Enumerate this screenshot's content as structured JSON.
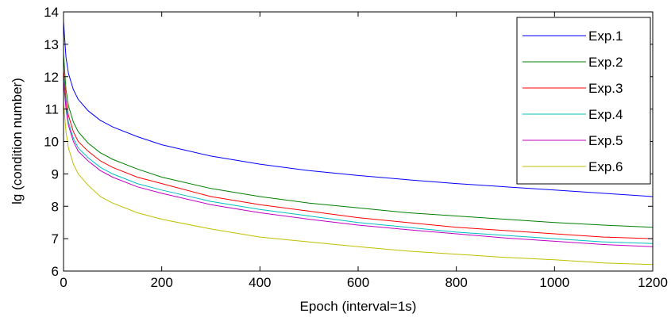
{
  "chart_data": {
    "type": "line",
    "xlabel": "Epoch (interval=1s)",
    "ylabel": "lg (condition number)",
    "xlim": [
      0,
      1200
    ],
    "ylim": [
      6,
      14
    ],
    "x_ticks": [
      "0",
      "200",
      "400",
      "600",
      "800",
      "1000",
      "1200"
    ],
    "y_ticks": [
      "6",
      "7",
      "8",
      "9",
      "10",
      "11",
      "12",
      "13",
      "14"
    ],
    "grid": false,
    "legend_position": "top-right",
    "series": [
      {
        "name": "Exp.1",
        "color": "#0000ff",
        "x": [
          0,
          5,
          10,
          20,
          30,
          50,
          75,
          100,
          150,
          200,
          300,
          400,
          500,
          600,
          700,
          800,
          900,
          1000,
          1100,
          1200
        ],
        "y": [
          13.7,
          12.6,
          12.1,
          11.6,
          11.3,
          10.95,
          10.65,
          10.45,
          10.15,
          9.9,
          9.55,
          9.3,
          9.1,
          8.95,
          8.82,
          8.7,
          8.6,
          8.5,
          8.4,
          8.3
        ]
      },
      {
        "name": "Exp.2",
        "color": "#008000",
        "x": [
          0,
          5,
          10,
          20,
          30,
          50,
          75,
          100,
          150,
          200,
          300,
          400,
          500,
          600,
          700,
          800,
          900,
          1000,
          1100,
          1200
        ],
        "y": [
          12.7,
          11.6,
          11.1,
          10.6,
          10.3,
          9.95,
          9.65,
          9.45,
          9.15,
          8.9,
          8.55,
          8.3,
          8.1,
          7.95,
          7.8,
          7.7,
          7.6,
          7.5,
          7.42,
          7.35
        ]
      },
      {
        "name": "Exp.3",
        "color": "#ff0000",
        "x": [
          0,
          5,
          10,
          20,
          30,
          50,
          75,
          100,
          150,
          200,
          300,
          400,
          500,
          600,
          700,
          800,
          900,
          1000,
          1100,
          1200
        ],
        "y": [
          12.2,
          11.3,
          10.8,
          10.3,
          10.0,
          9.7,
          9.4,
          9.2,
          8.9,
          8.7,
          8.3,
          8.05,
          7.85,
          7.65,
          7.5,
          7.35,
          7.25,
          7.15,
          7.05,
          7.0
        ]
      },
      {
        "name": "Exp.4",
        "color": "#00bfbf",
        "x": [
          0,
          5,
          10,
          20,
          30,
          50,
          75,
          100,
          150,
          200,
          300,
          400,
          500,
          600,
          700,
          800,
          900,
          1000,
          1100,
          1200
        ],
        "y": [
          12.0,
          11.1,
          10.6,
          10.1,
          9.8,
          9.5,
          9.2,
          9.0,
          8.7,
          8.5,
          8.15,
          7.9,
          7.7,
          7.5,
          7.35,
          7.2,
          7.1,
          7.0,
          6.9,
          6.85
        ]
      },
      {
        "name": "Exp.5",
        "color": "#bf00bf",
        "x": [
          0,
          5,
          10,
          20,
          30,
          50,
          75,
          100,
          150,
          200,
          300,
          400,
          500,
          600,
          700,
          800,
          900,
          1000,
          1100,
          1200
        ],
        "y": [
          11.9,
          11.0,
          10.5,
          10.0,
          9.7,
          9.4,
          9.1,
          8.9,
          8.6,
          8.4,
          8.05,
          7.8,
          7.6,
          7.42,
          7.28,
          7.15,
          7.02,
          6.92,
          6.82,
          6.75
        ]
      },
      {
        "name": "Exp.6",
        "color": "#bfbf00",
        "x": [
          0,
          5,
          10,
          20,
          30,
          50,
          75,
          100,
          150,
          200,
          300,
          400,
          500,
          600,
          700,
          800,
          900,
          1000,
          1100,
          1200
        ],
        "y": [
          11.2,
          10.3,
          9.8,
          9.3,
          9.0,
          8.65,
          8.3,
          8.1,
          7.8,
          7.6,
          7.3,
          7.05,
          6.9,
          6.75,
          6.62,
          6.52,
          6.42,
          6.35,
          6.25,
          6.2
        ]
      }
    ]
  }
}
